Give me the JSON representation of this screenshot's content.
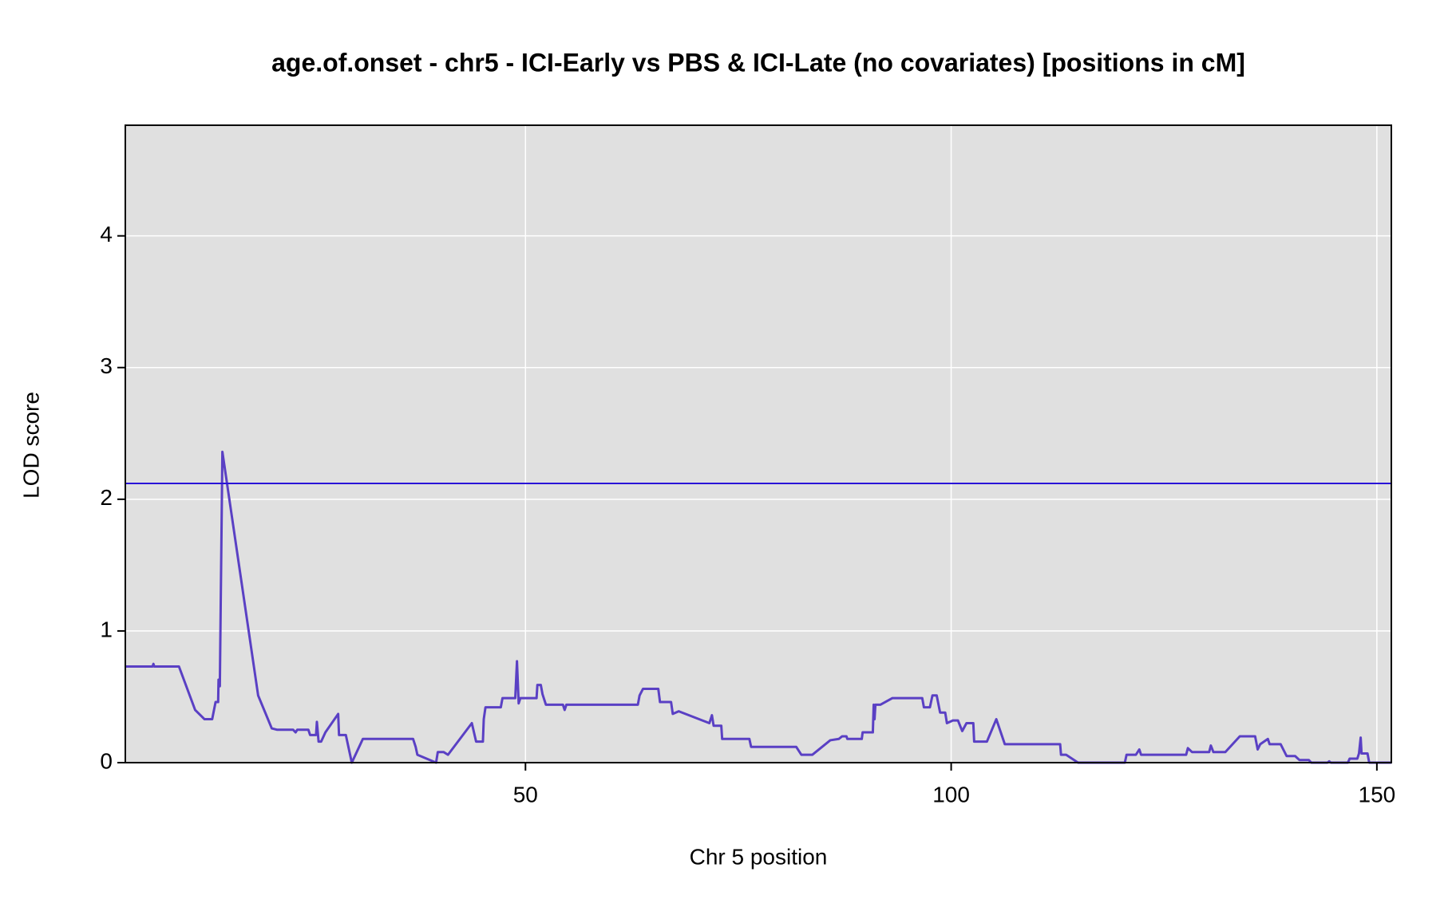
{
  "chart_data": {
    "type": "line",
    "title": "age.of.onset - chr5 - ICI-Early vs PBS & ICI-Late (no covariates) [positions in cM]",
    "xlabel": "Chr 5 position",
    "ylabel": "LOD score",
    "xlim": [
      3,
      151.7
    ],
    "ylim": [
      0,
      4.84
    ],
    "xticks": [
      50,
      100,
      150
    ],
    "yticks": [
      0,
      1,
      2,
      3,
      4
    ],
    "grid": true,
    "threshold": 2.12,
    "threshold_color": "#2a14d8",
    "x": [
      3,
      6.2,
      6.3,
      6.4,
      9.3,
      11.2,
      12.3,
      13.2,
      13.6,
      13.9,
      13.95,
      14.1,
      14.4,
      18.6,
      20.2,
      20.8,
      22.7,
      23,
      23.2,
      24.5,
      24.7,
      25.4,
      25.5,
      25.7,
      26.0,
      26.5,
      28.0,
      28.1,
      28.9,
      29.6,
      30.9,
      36.8,
      37.1,
      37.3,
      39.5,
      39.7,
      40.4,
      40.9,
      43.7,
      44.2,
      45.0,
      45.1,
      45.3,
      47.1,
      47.3,
      48.8,
      49.0,
      49.2,
      49.4,
      51.3,
      51.4,
      51.8,
      52.0,
      52.4,
      54.4,
      54.6,
      54.8,
      63.2,
      63.4,
      63.8,
      65.6,
      65.8,
      67.1,
      67.3,
      68.0,
      71.6,
      71.9,
      72.1,
      73.0,
      73.1,
      76.3,
      76.5,
      81.8,
      82.4,
      83.7,
      85.8,
      86.8,
      87.2,
      87.7,
      87.8,
      89.5,
      89.6,
      90.8,
      90.9,
      91.0,
      91.1,
      91.7,
      93.1,
      96.6,
      96.8,
      97.5,
      97.8,
      98.3,
      98.7,
      99.3,
      99.5,
      100.2,
      100.8,
      101.3,
      101.8,
      102.6,
      102.7,
      104.2,
      105.3,
      106.3,
      112.8,
      112.9,
      113.5,
      114.9,
      120.4,
      120.6,
      121.7,
      122.1,
      122.3,
      127.6,
      127.8,
      128.3,
      128.7,
      130.3,
      130.5,
      130.8,
      132.2,
      133.9,
      135.7,
      136.0,
      136.3,
      137.2,
      137.4,
      138.7,
      139.4,
      140.4,
      140.9,
      142.0,
      142.3,
      144.2,
      144.4,
      144.6,
      146.6,
      146.8,
      147.7,
      147.9,
      148.1,
      148.2,
      148.9,
      149.1,
      151.7
    ],
    "series": [
      {
        "name": "LOD score",
        "color": "#5a40c4",
        "values": [
          0.73,
          0.73,
          0.75,
          0.73,
          0.73,
          0.4,
          0.33,
          0.33,
          0.46,
          0.46,
          0.63,
          0.58,
          2.36,
          0.51,
          0.26,
          0.25,
          0.25,
          0.23,
          0.25,
          0.25,
          0.21,
          0.21,
          0.31,
          0.16,
          0.16,
          0.23,
          0.37,
          0.21,
          0.21,
          0,
          0.18,
          0.18,
          0.12,
          0.06,
          0,
          0.08,
          0.08,
          0.06,
          0.3,
          0.16,
          0.16,
          0.33,
          0.42,
          0.42,
          0.49,
          0.49,
          0.77,
          0.45,
          0.49,
          0.49,
          0.59,
          0.59,
          0.52,
          0.44,
          0.44,
          0.4,
          0.44,
          0.44,
          0.51,
          0.56,
          0.56,
          0.46,
          0.46,
          0.37,
          0.39,
          0.3,
          0.36,
          0.28,
          0.28,
          0.18,
          0.18,
          0.12,
          0.12,
          0.06,
          0.06,
          0.17,
          0.18,
          0.2,
          0.2,
          0.18,
          0.18,
          0.23,
          0.23,
          0.44,
          0.33,
          0.44,
          0.44,
          0.49,
          0.49,
          0.42,
          0.42,
          0.51,
          0.51,
          0.38,
          0.38,
          0.3,
          0.32,
          0.32,
          0.24,
          0.3,
          0.3,
          0.16,
          0.16,
          0.33,
          0.14,
          0.14,
          0.06,
          0.06,
          0,
          0,
          0.06,
          0.06,
          0.1,
          0.06,
          0.06,
          0.11,
          0.08,
          0.08,
          0.08,
          0.13,
          0.08,
          0.08,
          0.2,
          0.2,
          0.1,
          0.14,
          0.18,
          0.14,
          0.14,
          0.05,
          0.05,
          0.02,
          0.02,
          0,
          0,
          0.01,
          0,
          0,
          0.03,
          0.03,
          0.07,
          0.19,
          0.07,
          0.07,
          0,
          0
        ]
      }
    ]
  }
}
